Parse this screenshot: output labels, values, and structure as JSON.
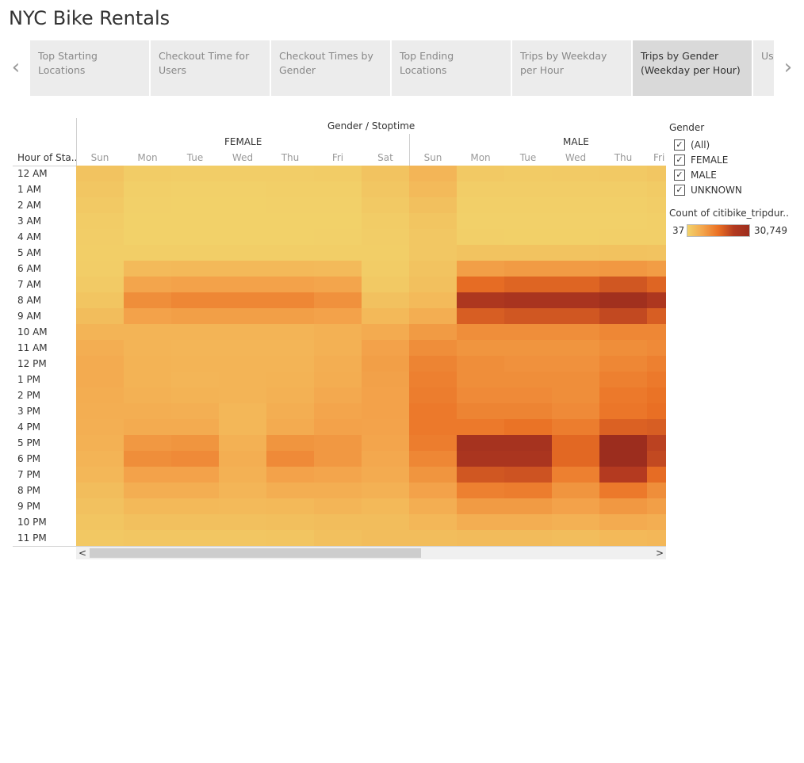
{
  "app": {
    "title": "NYC Bike Rentals"
  },
  "nav": {
    "prev_icon": "‹",
    "next_icon": "›"
  },
  "tabs": [
    {
      "label": "Top Starting Locations",
      "active": false
    },
    {
      "label": "Checkout Time for Users",
      "active": false
    },
    {
      "label": "Checkout Times by Gender",
      "active": false
    },
    {
      "label": "Top Ending Locations",
      "active": false
    },
    {
      "label": "Trips by Weekday per Hour",
      "active": false
    },
    {
      "label": "Trips by Gender (Weekday per Hour)",
      "active": true
    },
    {
      "label": "Use by",
      "active": false
    }
  ],
  "chart_header": {
    "title": "Gender  /  Stoptime",
    "row_header": "Hour of Sta..",
    "groups": [
      "FEMALE",
      "MALE"
    ]
  },
  "legend": {
    "filter_title": "Gender",
    "filters": [
      {
        "label": "(All)",
        "checked": true
      },
      {
        "label": "FEMALE",
        "checked": true
      },
      {
        "label": "MALE",
        "checked": true
      },
      {
        "label": "UNKNOWN",
        "checked": true
      }
    ],
    "color_title": "Count of citibike_tripdur..",
    "color_min": "37",
    "color_max": "30,749",
    "colors": [
      "#f2d26a",
      "#f3a44b",
      "#ea7024",
      "#b33a20",
      "#9c2d1e"
    ]
  },
  "scrollbar": {
    "left_icon": "<",
    "right_icon": ">"
  },
  "chart_data": {
    "type": "heatmap",
    "title": "Gender  /  Stoptime",
    "x_groups": [
      "FEMALE",
      "MALE"
    ],
    "columns": [
      {
        "group": "FEMALE",
        "day": "Sun"
      },
      {
        "group": "FEMALE",
        "day": "Mon"
      },
      {
        "group": "FEMALE",
        "day": "Tue"
      },
      {
        "group": "FEMALE",
        "day": "Wed"
      },
      {
        "group": "FEMALE",
        "day": "Thu"
      },
      {
        "group": "FEMALE",
        "day": "Fri"
      },
      {
        "group": "FEMALE",
        "day": "Sat"
      },
      {
        "group": "MALE",
        "day": "Sun"
      },
      {
        "group": "MALE",
        "day": "Mon"
      },
      {
        "group": "MALE",
        "day": "Tue"
      },
      {
        "group": "MALE",
        "day": "Wed"
      },
      {
        "group": "MALE",
        "day": "Thu"
      },
      {
        "group": "MALE",
        "day": "Fri"
      }
    ],
    "rows": [
      "12 AM",
      "1 AM",
      "2 AM",
      "3 AM",
      "4 AM",
      "5 AM",
      "6 AM",
      "7 AM",
      "8 AM",
      "9 AM",
      "10 AM",
      "11 AM",
      "12 PM",
      "1 PM",
      "2 PM",
      "3 PM",
      "4 PM",
      "5 PM",
      "6 PM",
      "7 PM",
      "8 PM",
      "9 PM",
      "10 PM",
      "11 PM"
    ],
    "ylabel": "Hour of Sta..",
    "value_range": [
      37,
      30749
    ],
    "values": [
      [
        2500,
        1000,
        800,
        800,
        900,
        1000,
        2600,
        4800,
        1500,
        1200,
        1300,
        1500,
        2000
      ],
      [
        2000,
        500,
        400,
        400,
        500,
        600,
        2000,
        4000,
        900,
        800,
        800,
        900,
        1200
      ],
      [
        1500,
        300,
        250,
        250,
        300,
        400,
        1500,
        3000,
        600,
        500,
        500,
        600,
        800
      ],
      [
        1000,
        200,
        200,
        200,
        200,
        250,
        1000,
        2200,
        400,
        350,
        350,
        400,
        500
      ],
      [
        800,
        250,
        250,
        250,
        250,
        300,
        800,
        1800,
        500,
        450,
        450,
        500,
        600
      ],
      [
        700,
        700,
        700,
        700,
        700,
        700,
        700,
        1800,
        2500,
        2600,
        2600,
        2700,
        2600
      ],
      [
        900,
        4000,
        4200,
        4200,
        4200,
        4000,
        1000,
        2500,
        8500,
        9000,
        9000,
        9500,
        8800
      ],
      [
        1300,
        7500,
        8000,
        8000,
        8000,
        7500,
        1500,
        3000,
        16000,
        17000,
        17000,
        19000,
        17000
      ],
      [
        2200,
        11000,
        12000,
        12000,
        12000,
        10500,
        2800,
        4000,
        25000,
        26500,
        26500,
        29000,
        25000
      ],
      [
        3500,
        8000,
        8500,
        8500,
        8500,
        8000,
        4200,
        6000,
        18000,
        19000,
        19000,
        21000,
        18000
      ],
      [
        5000,
        5000,
        5000,
        5000,
        5000,
        5500,
        6500,
        9000,
        11000,
        11000,
        11000,
        12000,
        12000
      ],
      [
        6000,
        5000,
        4800,
        4800,
        4800,
        5500,
        8000,
        11000,
        10000,
        10000,
        10000,
        11000,
        11500
      ],
      [
        6500,
        5200,
        5000,
        5000,
        5000,
        6000,
        8500,
        12500,
        11000,
        10500,
        10500,
        12000,
        13000
      ],
      [
        6500,
        5200,
        4800,
        5000,
        5200,
        6200,
        8200,
        13000,
        11000,
        11000,
        11000,
        13000,
        14000
      ],
      [
        6200,
        5500,
        5200,
        5000,
        5500,
        6800,
        8000,
        13500,
        11500,
        11500,
        11000,
        14000,
        15000
      ],
      [
        6000,
        6000,
        5800,
        4500,
        6000,
        7500,
        8000,
        14000,
        12500,
        12500,
        11500,
        14500,
        15500
      ],
      [
        5800,
        6500,
        6500,
        4600,
        6500,
        8000,
        7800,
        14000,
        14000,
        15000,
        13500,
        17500,
        18000
      ],
      [
        5500,
        9500,
        10000,
        5500,
        10000,
        9500,
        7500,
        13500,
        27500,
        27500,
        16500,
        30749,
        22000
      ],
      [
        5000,
        11000,
        11500,
        6000,
        11500,
        9500,
        7000,
        12000,
        26000,
        26000,
        16500,
        30749,
        21000
      ],
      [
        4500,
        8000,
        8000,
        5600,
        8000,
        7500,
        6500,
        10000,
        19000,
        19500,
        13000,
        23000,
        16000
      ],
      [
        3500,
        6000,
        6000,
        4800,
        6000,
        6000,
        5500,
        8000,
        13000,
        13500,
        10000,
        14000,
        11000
      ],
      [
        2800,
        4200,
        4200,
        4000,
        4200,
        4800,
        4200,
        6000,
        9000,
        9000,
        8000,
        9500,
        8500
      ],
      [
        2200,
        3000,
        3000,
        3100,
        3200,
        3500,
        3500,
        4500,
        6000,
        6000,
        5500,
        6500,
        6000
      ],
      [
        1700,
        2000,
        2000,
        2100,
        2200,
        3000,
        3500,
        3500,
        3800,
        3800,
        3600,
        4200,
        4600
      ]
    ]
  }
}
